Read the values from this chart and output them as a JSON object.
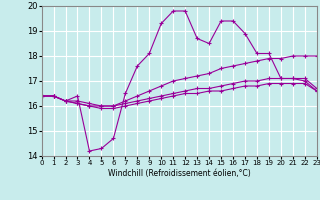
{
  "xlabel": "Windchill (Refroidissement éolien,°C)",
  "xlim": [
    0,
    23
  ],
  "ylim": [
    14,
    20
  ],
  "yticks": [
    14,
    15,
    16,
    17,
    18,
    19,
    20
  ],
  "xticks": [
    0,
    1,
    2,
    3,
    4,
    5,
    6,
    7,
    8,
    9,
    10,
    11,
    12,
    13,
    14,
    15,
    16,
    17,
    18,
    19,
    20,
    21,
    22,
    23
  ],
  "background_color": "#c8ecec",
  "line_color": "#990099",
  "grid_color": "#ffffff",
  "lines": [
    {
      "x": [
        0,
        1,
        2,
        3,
        4,
        5,
        6,
        7,
        8,
        9,
        10,
        11,
        12,
        13,
        14,
        15,
        16,
        17,
        18,
        19,
        20,
        21,
        22,
        23
      ],
      "y": [
        16.4,
        16.4,
        16.2,
        16.4,
        14.2,
        14.3,
        14.7,
        16.5,
        17.6,
        18.1,
        19.3,
        19.8,
        19.8,
        18.7,
        18.5,
        19.4,
        19.4,
        18.9,
        18.1,
        18.1,
        17.1,
        17.1,
        17.0,
        16.6
      ]
    },
    {
      "x": [
        0,
        1,
        2,
        3,
        4,
        5,
        6,
        7,
        8,
        9,
        10,
        11,
        12,
        13,
        14,
        15,
        16,
        17,
        18,
        19,
        20,
        21,
        22,
        23
      ],
      "y": [
        16.4,
        16.4,
        16.2,
        16.2,
        16.1,
        16.0,
        16.0,
        16.2,
        16.4,
        16.6,
        16.8,
        17.0,
        17.1,
        17.2,
        17.3,
        17.5,
        17.6,
        17.7,
        17.8,
        17.9,
        17.9,
        18.0,
        18.0,
        18.0
      ]
    },
    {
      "x": [
        0,
        1,
        2,
        3,
        4,
        5,
        6,
        7,
        8,
        9,
        10,
        11,
        12,
        13,
        14,
        15,
        16,
        17,
        18,
        19,
        20,
        21,
        22,
        23
      ],
      "y": [
        16.4,
        16.4,
        16.2,
        16.1,
        16.0,
        16.0,
        16.0,
        16.1,
        16.2,
        16.3,
        16.4,
        16.5,
        16.6,
        16.7,
        16.7,
        16.8,
        16.9,
        17.0,
        17.0,
        17.1,
        17.1,
        17.1,
        17.1,
        16.7
      ]
    },
    {
      "x": [
        0,
        1,
        2,
        3,
        4,
        5,
        6,
        7,
        8,
        9,
        10,
        11,
        12,
        13,
        14,
        15,
        16,
        17,
        18,
        19,
        20,
        21,
        22,
        23
      ],
      "y": [
        16.4,
        16.4,
        16.2,
        16.1,
        16.0,
        15.9,
        15.9,
        16.0,
        16.1,
        16.2,
        16.3,
        16.4,
        16.5,
        16.5,
        16.6,
        16.6,
        16.7,
        16.8,
        16.8,
        16.9,
        16.9,
        16.9,
        16.9,
        16.6
      ]
    }
  ]
}
